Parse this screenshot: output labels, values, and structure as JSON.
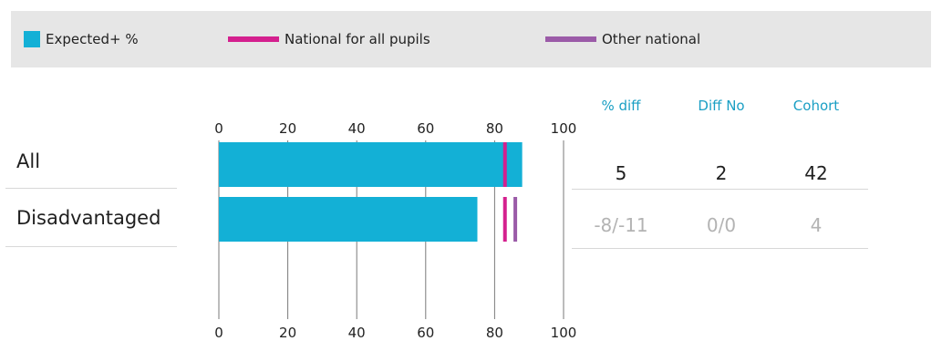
{
  "legend": {
    "expected": {
      "label": "Expected+ %",
      "color": "#13b0d6"
    },
    "national_all": {
      "label": "National for all pupils",
      "color": "#d4208e"
    },
    "other_national": {
      "label": "Other national",
      "color": "#9b5ba8"
    }
  },
  "table": {
    "headers": {
      "pct_diff": "% diff",
      "diff_no": "Diff No",
      "cohort": "Cohort"
    },
    "header_color": "#1a9fc4",
    "rows": [
      {
        "label": "All",
        "pct_diff": "5",
        "diff_no": "2",
        "cohort": "42",
        "color": "#1f1f1f"
      },
      {
        "label": "Disadvantaged",
        "pct_diff": "-8/-11",
        "diff_no": "0/0",
        "cohort": "4",
        "color": "#b3b3b3"
      }
    ]
  },
  "chart_data": {
    "type": "bar",
    "orientation": "horizontal",
    "categories": [
      "All",
      "Disadvantaged"
    ],
    "series": [
      {
        "name": "Expected+ %",
        "values": [
          88,
          75
        ]
      },
      {
        "name": "National for all pupils",
        "values": [
          83,
          83
        ]
      },
      {
        "name": "Other national",
        "values": [
          null,
          86
        ]
      }
    ],
    "xlim": [
      0,
      100
    ],
    "xticks": [
      "0",
      "20",
      "40",
      "60",
      "80",
      "100"
    ],
    "grid": true,
    "legend": "top"
  }
}
